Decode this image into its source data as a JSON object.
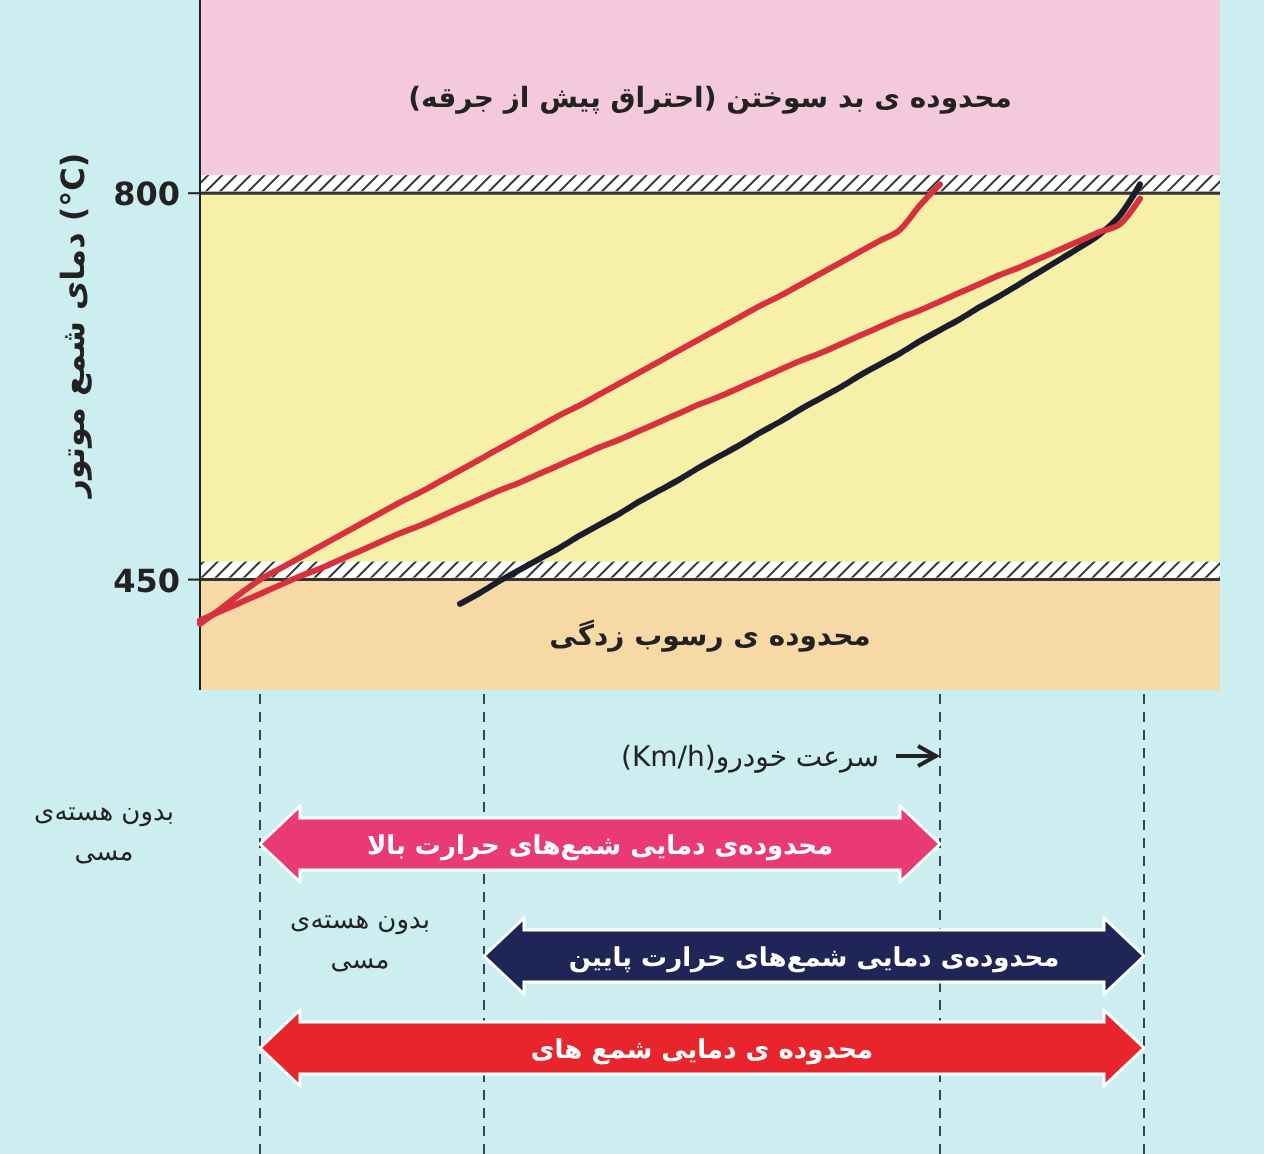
{
  "chart_data": {
    "type": "line",
    "xlabel": "سرعت خودرو(Km/h)",
    "ylabel": "دمای شمع موتور (°C)",
    "categories": [
      null,
      null,
      null,
      null,
      null,
      null,
      null,
      null,
      null,
      null,
      null,
      null,
      null,
      null,
      null,
      null,
      null,
      null,
      null,
      null,
      null,
      null,
      null,
      null,
      null,
      null,
      null,
      null,
      null,
      null,
      null,
      null,
      null,
      null,
      null,
      null,
      null,
      null,
      null,
      null,
      null,
      null,
      null,
      null,
      null,
      null,
      null,
      null,
      null,
      null,
      null,
      null
    ],
    "series": [
      {
        "color": "#d8303c",
        "values": [
          410,
          423,
          437,
          450,
          460,
          470,
          480,
          490,
          500,
          510,
          520,
          529,
          539,
          549,
          559,
          569,
          579,
          589,
          599,
          608,
          618,
          628,
          638,
          648,
          658,
          668,
          678,
          688,
          698,
          707,
          717,
          727,
          737,
          747,
          757,
          767,
          789,
          808,
          null,
          null,
          null,
          null,
          null,
          null,
          null,
          null,
          null,
          null,
          null,
          null,
          null,
          null
        ]
      },
      {
        "color": "#1b1d2e",
        "values": [
          null,
          null,
          null,
          null,
          null,
          null,
          null,
          null,
          null,
          null,
          null,
          null,
          null,
          428,
          438,
          449,
          459,
          469,
          479,
          490,
          500,
          510,
          521,
          531,
          541,
          552,
          562,
          572,
          583,
          593,
          604,
          614,
          624,
          635,
          645,
          655,
          666,
          676,
          686,
          697,
          707,
          718,
          729,
          740,
          751,
          763,
          780,
          808,
          null,
          null,
          null,
          null
        ]
      },
      {
        "color": "#d8303c",
        "values": [
          413,
          421,
          429,
          437,
          445,
          453,
          460,
          468,
          476,
          484,
          492,
          499,
          507,
          515,
          523,
          531,
          538,
          546,
          554,
          562,
          570,
          577,
          585,
          593,
          601,
          609,
          616,
          624,
          632,
          640,
          648,
          655,
          663,
          671,
          679,
          687,
          694,
          702,
          710,
          718,
          726,
          733,
          741,
          749,
          757,
          765,
          772,
          795,
          null,
          null,
          null,
          null
        ]
      }
    ],
    "ylim": [
      350,
      975
    ],
    "yticks": [
      450,
      800
    ],
    "grid": false,
    "marker": "none",
    "line_style": "solid",
    "ref_lines": [
      {
        "axis": "y",
        "value": 800
      },
      {
        "axis": "y",
        "value": 450
      }
    ],
    "bands": [
      {
        "axis": "y",
        "from": 800,
        "to": 975,
        "label": "محدوده ی بد سوختن (احتراق پیش از جرقه)",
        "color": "#f5c9dc"
      },
      {
        "axis": "y",
        "from": 450,
        "to": 800,
        "color": "#f7f0a8"
      },
      {
        "axis": "y",
        "from": 350,
        "to": 450,
        "label": "محدوده ی رسوب زدگی",
        "color": "#f7d9a6"
      }
    ],
    "annotations": [
      "محدوده‌ی دمایی شمع‌های حرارت بالا",
      "بدون هسته‌ی مسی",
      "محدوده‌ی دمایی شمع‌های حرارت پایین",
      "بدون هسته‌ی مسی",
      "محدوده ی دمایی شمع های"
    ]
  }
}
